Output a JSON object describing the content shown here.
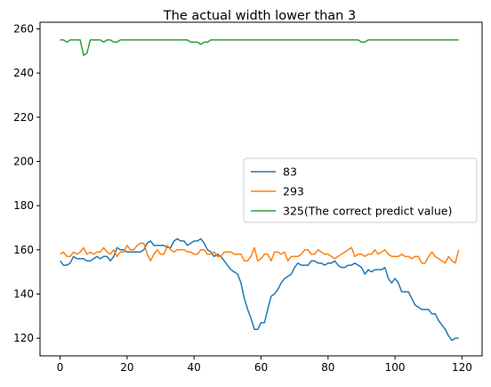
{
  "chart_data": {
    "type": "line",
    "title": "The actual width lower than 3",
    "xlabel": "",
    "ylabel": "",
    "xlim": [
      -6,
      126
    ],
    "ylim": [
      112,
      263
    ],
    "xticks": [
      0,
      20,
      40,
      60,
      80,
      100,
      120
    ],
    "yticks": [
      120,
      140,
      160,
      180,
      200,
      220,
      240,
      260
    ],
    "grid": false,
    "legend_position": "center-right",
    "x": [
      0,
      1,
      2,
      3,
      4,
      5,
      6,
      7,
      8,
      9,
      10,
      11,
      12,
      13,
      14,
      15,
      16,
      17,
      18,
      19,
      20,
      21,
      22,
      23,
      24,
      25,
      26,
      27,
      28,
      29,
      30,
      31,
      32,
      33,
      34,
      35,
      36,
      37,
      38,
      39,
      40,
      41,
      42,
      43,
      44,
      45,
      46,
      47,
      48,
      49,
      50,
      51,
      52,
      53,
      54,
      55,
      56,
      57,
      58,
      59,
      60,
      61,
      62,
      63,
      64,
      65,
      66,
      67,
      68,
      69,
      70,
      71,
      72,
      73,
      74,
      75,
      76,
      77,
      78,
      79,
      80,
      81,
      82,
      83,
      84,
      85,
      86,
      87,
      88,
      89,
      90,
      91,
      92,
      93,
      94,
      95,
      96,
      97,
      98,
      99,
      100,
      101,
      102,
      103,
      104,
      105,
      106,
      107,
      108,
      109,
      110,
      111,
      112,
      113,
      114,
      115,
      116,
      117,
      118,
      119
    ],
    "series": [
      {
        "name": "83",
        "color": "#1f77b4",
        "values": [
          155,
          153,
          153,
          154,
          157,
          156,
          156,
          156,
          155,
          155,
          156,
          157,
          156,
          157,
          157,
          155,
          157,
          161,
          160,
          160,
          159,
          159,
          159,
          159,
          159,
          160,
          163,
          164,
          162,
          162,
          162,
          162,
          161,
          161,
          164,
          165,
          164,
          164,
          162,
          163,
          164,
          164,
          165,
          163,
          160,
          159,
          157,
          158,
          157,
          155,
          153,
          151,
          150,
          149,
          145,
          138,
          133,
          129,
          124,
          124,
          127,
          127,
          133,
          139,
          140,
          142,
          145,
          147,
          148,
          149,
          152,
          154,
          153,
          153,
          153,
          155,
          155,
          154,
          154,
          153,
          154,
          154,
          155,
          153,
          152,
          152,
          153,
          153,
          154,
          153,
          152,
          149,
          151,
          150,
          151,
          151,
          151,
          152,
          147,
          145,
          147,
          145,
          141,
          141,
          141,
          138,
          135,
          134,
          133,
          133,
          133,
          131,
          131,
          128,
          126,
          124,
          121,
          119,
          120,
          120
        ]
      },
      {
        "name": "293",
        "color": "#ff7f0e",
        "values": [
          158,
          159,
          157,
          157,
          159,
          158,
          159,
          161,
          158,
          159,
          158,
          159,
          159,
          161,
          159,
          158,
          160,
          157,
          159,
          159,
          162,
          160,
          160,
          162,
          163,
          163,
          158,
          155,
          158,
          160,
          158,
          158,
          162,
          160,
          159,
          160,
          160,
          160,
          159,
          159,
          158,
          158,
          160,
          160,
          158,
          158,
          159,
          157,
          157,
          159,
          159,
          159,
          158,
          158,
          158,
          155,
          155,
          157,
          161,
          155,
          156,
          158,
          158,
          155,
          159,
          159,
          158,
          159,
          155,
          157,
          157,
          157,
          158,
          160,
          160,
          158,
          158,
          160,
          159,
          158,
          158,
          157,
          156,
          157,
          158,
          159,
          160,
          161,
          157,
          158,
          158,
          157,
          158,
          158,
          160,
          158,
          159,
          160,
          158,
          157,
          157,
          157,
          158,
          157,
          157,
          156,
          157,
          157,
          154,
          154,
          157,
          159,
          157,
          156,
          155,
          154,
          157,
          155,
          154,
          160
        ]
      },
      {
        "name": "325(The correct predict value)",
        "color": "#2ca02c",
        "values": [
          255,
          255,
          254,
          255,
          255,
          255,
          255,
          248,
          249,
          255,
          255,
          255,
          255,
          254,
          255,
          255,
          254,
          254,
          255,
          255,
          255,
          255,
          255,
          255,
          255,
          255,
          255,
          255,
          255,
          255,
          255,
          255,
          255,
          255,
          255,
          255,
          255,
          255,
          255,
          254,
          254,
          254,
          253,
          254,
          254,
          255,
          255,
          255,
          255,
          255,
          255,
          255,
          255,
          255,
          255,
          255,
          255,
          255,
          255,
          255,
          255,
          255,
          255,
          255,
          255,
          255,
          255,
          255,
          255,
          255,
          255,
          255,
          255,
          255,
          255,
          255,
          255,
          255,
          255,
          255,
          255,
          255,
          255,
          255,
          255,
          255,
          255,
          255,
          255,
          255,
          254,
          254,
          255,
          255,
          255,
          255,
          255,
          255,
          255,
          255,
          255,
          255,
          255,
          255,
          255,
          255,
          255,
          255,
          255,
          255,
          255,
          255,
          255,
          255,
          255,
          255,
          255,
          255,
          255,
          255
        ]
      }
    ]
  }
}
